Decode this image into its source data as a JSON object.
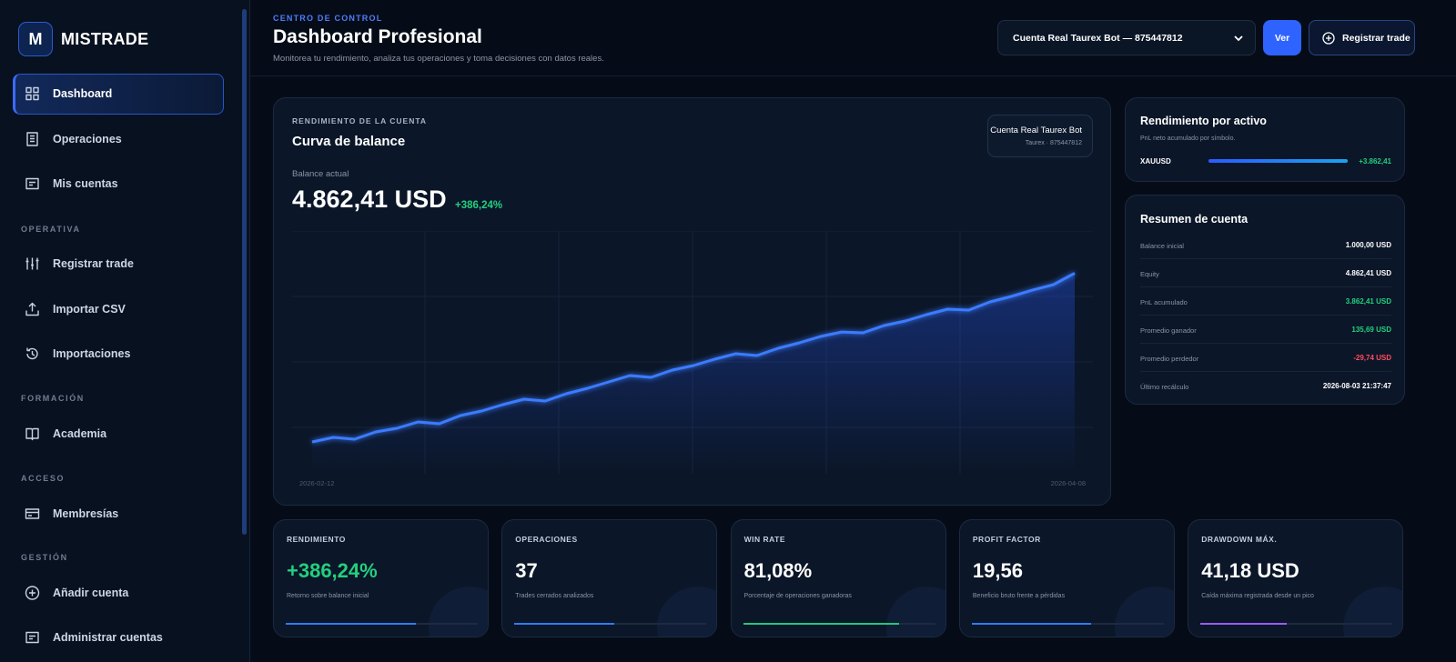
{
  "sidebar": {
    "logo_letter": "M",
    "brand": "MISTRADE",
    "main_items": [
      "Dashboard",
      "Operaciones",
      "Mis cuentas"
    ],
    "sections": [
      {
        "title": "OPERATIVA",
        "items": [
          "Registrar trade",
          "Importar CSV",
          "Importaciones"
        ]
      },
      {
        "title": "FORMACIÓN",
        "items": [
          "Academia"
        ]
      },
      {
        "title": "ACCESO",
        "items": [
          "Membresías"
        ]
      },
      {
        "title": "GESTIÓN",
        "items": [
          "Añadir cuenta",
          "Administrar cuentas"
        ]
      }
    ]
  },
  "header": {
    "eyebrow": "CENTRO DE CONTROL",
    "title": "Dashboard Profesional",
    "subtitle": "Monitorea tu rendimiento, analiza tus operaciones y toma decisiones con datos reales.",
    "account_select": "Cuenta Real Taurex Bot — 875447812",
    "view_button": "Ver",
    "register_button": "Registrar trade"
  },
  "balance_card": {
    "eyebrow": "RENDIMIENTO DE LA CUENTA",
    "title": "Curva de balance",
    "badge_name": "Cuenta Real Taurex Bot",
    "badge_detail": "Taurex · 875447812",
    "balance_label": "Balance actual",
    "balance": "4.862,41 USD",
    "change": "+386,24%"
  },
  "chart_data": {
    "type": "line",
    "color": "#3b7bff",
    "ylim": [
      400,
      5800
    ],
    "categories": [
      "2026-02-12",
      null,
      null,
      null,
      null,
      null,
      null,
      null,
      null,
      null,
      null,
      null,
      null,
      null,
      null,
      null,
      null,
      null,
      null,
      null,
      null,
      null,
      null,
      null,
      null,
      null,
      null,
      null,
      null,
      null,
      null,
      null,
      null,
      null,
      null,
      null,
      "2026-04-08"
    ],
    "values": [
      1108,
      1209,
      1168,
      1330,
      1411,
      1553,
      1512,
      1694,
      1795,
      1937,
      2058,
      2018,
      2179,
      2301,
      2442,
      2584,
      2543,
      2705,
      2806,
      2948,
      3069,
      3029,
      3190,
      3312,
      3453,
      3554,
      3534,
      3696,
      3797,
      3939,
      4060,
      4040,
      4222,
      4343,
      4484,
      4606,
      4862
    ]
  },
  "assets_card": {
    "title": "Rendimiento por activo",
    "subtitle": "PnL neto acumulado por símbolo.",
    "assets": [
      {
        "symbol": "XAUUSD",
        "pnl": "+3.862,41",
        "bar": 100
      }
    ]
  },
  "summary_card": {
    "title": "Resumen de cuenta",
    "rows": [
      {
        "label": "Balance inicial",
        "value": "1.000,00 USD",
        "tone": "#ffffff"
      },
      {
        "label": "Equity",
        "value": "4.862,41 USD",
        "tone": "#ffffff"
      },
      {
        "label": "PnL acumulado",
        "value": "3.862,41 USD",
        "tone": "#22d07f"
      },
      {
        "label": "Promedio ganador",
        "value": "135,69 USD",
        "tone": "#22d07f"
      },
      {
        "label": "Promedio perdedor",
        "value": "-29,74 USD",
        "tone": "#ff4d5e"
      },
      {
        "label": "Último recálculo",
        "value": "2026-08-03 21:37:47",
        "tone": "#ffffff"
      }
    ]
  },
  "kpis": [
    {
      "label": "RENDIMIENTO",
      "value": "+386,24%",
      "note": "Retorno sobre balance inicial",
      "tone": "#22d07f",
      "progress": 68,
      "color": "#2f7cf6"
    },
    {
      "label": "OPERACIONES",
      "value": "37",
      "note": "Trades cerrados analizados",
      "tone": "#ffffff",
      "progress": 52,
      "color": "#2f7cf6"
    },
    {
      "label": "WIN RATE",
      "value": "81,08%",
      "note": "Porcentaje de operaciones ganadoras",
      "tone": "#ffffff",
      "progress": 81,
      "color": "#22c77a"
    },
    {
      "label": "PROFIT FACTOR",
      "value": "19,56",
      "note": "Beneficio bruto frente a pérdidas",
      "tone": "#ffffff",
      "progress": 62,
      "color": "#2f7cf6"
    },
    {
      "label": "DRAWDOWN MÁX.",
      "value": "41,18 USD",
      "note": "Caída máxima registrada desde un pico",
      "tone": "#ffffff",
      "progress": 45,
      "color": "#9b5cf6"
    }
  ]
}
